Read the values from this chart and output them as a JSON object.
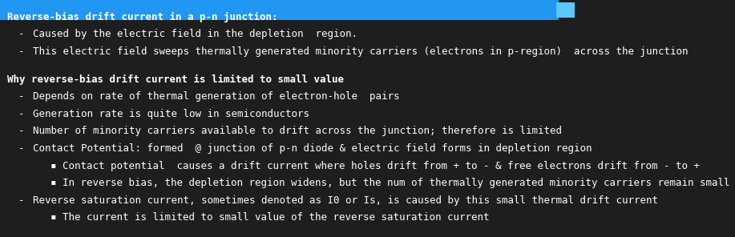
{
  "bg_color": "#1e1e1e",
  "text_color": "#ffffff",
  "header_bar_color": "#2196f3",
  "header_bar_height": 0.085,
  "title1": "Reverse-bias drift current in a p-n junction:",
  "title2": "Why reverse-bias drift current is limited to small value",
  "bullet_marker": "-",
  "sub_bullet_marker": "▪",
  "font_family": "monospace",
  "title_fontsize": 9.5,
  "body_fontsize": 9.0,
  "lines": [
    {
      "level": 0,
      "bold": true,
      "text": "Reverse-bias drift current in a p-n junction:"
    },
    {
      "level": 1,
      "bold": false,
      "text": "Caused by the electric field in the depletion  region."
    },
    {
      "level": 1,
      "bold": false,
      "text": "This electric field sweeps thermally generated minority carriers (electrons in p-region)  across the junction"
    },
    {
      "level": 0,
      "bold": false,
      "text": ""
    },
    {
      "level": 0,
      "bold": true,
      "text": "Why reverse-bias drift current is limited to small value"
    },
    {
      "level": 1,
      "bold": false,
      "text": "Depends on rate of thermal generation of electron-hole  pairs"
    },
    {
      "level": 1,
      "bold": false,
      "text": "Generation rate is quite low in semiconductors"
    },
    {
      "level": 1,
      "bold": false,
      "text": "Number of minority carriers available to drift across the junction; therefore is limited"
    },
    {
      "level": 1,
      "bold": false,
      "text": "Contact Potential: formed  @ junction of p-n diode & electric field forms in depletion region"
    },
    {
      "level": 2,
      "bold": false,
      "text": "Contact potential  causes a drift current where holes drift from + to - & free electrons drift from - to +"
    },
    {
      "level": 2,
      "bold": false,
      "text": "In reverse bias, the depletion region widens, but the num of thermally generated minority carriers remain small"
    },
    {
      "level": 1,
      "bold": false,
      "text": "Reverse saturation current, sometimes denoted as I0 or Is, is caused by this small thermal drift current"
    },
    {
      "level": 2,
      "bold": false,
      "text": "The current is limited to small value of the reverse saturation current"
    }
  ]
}
